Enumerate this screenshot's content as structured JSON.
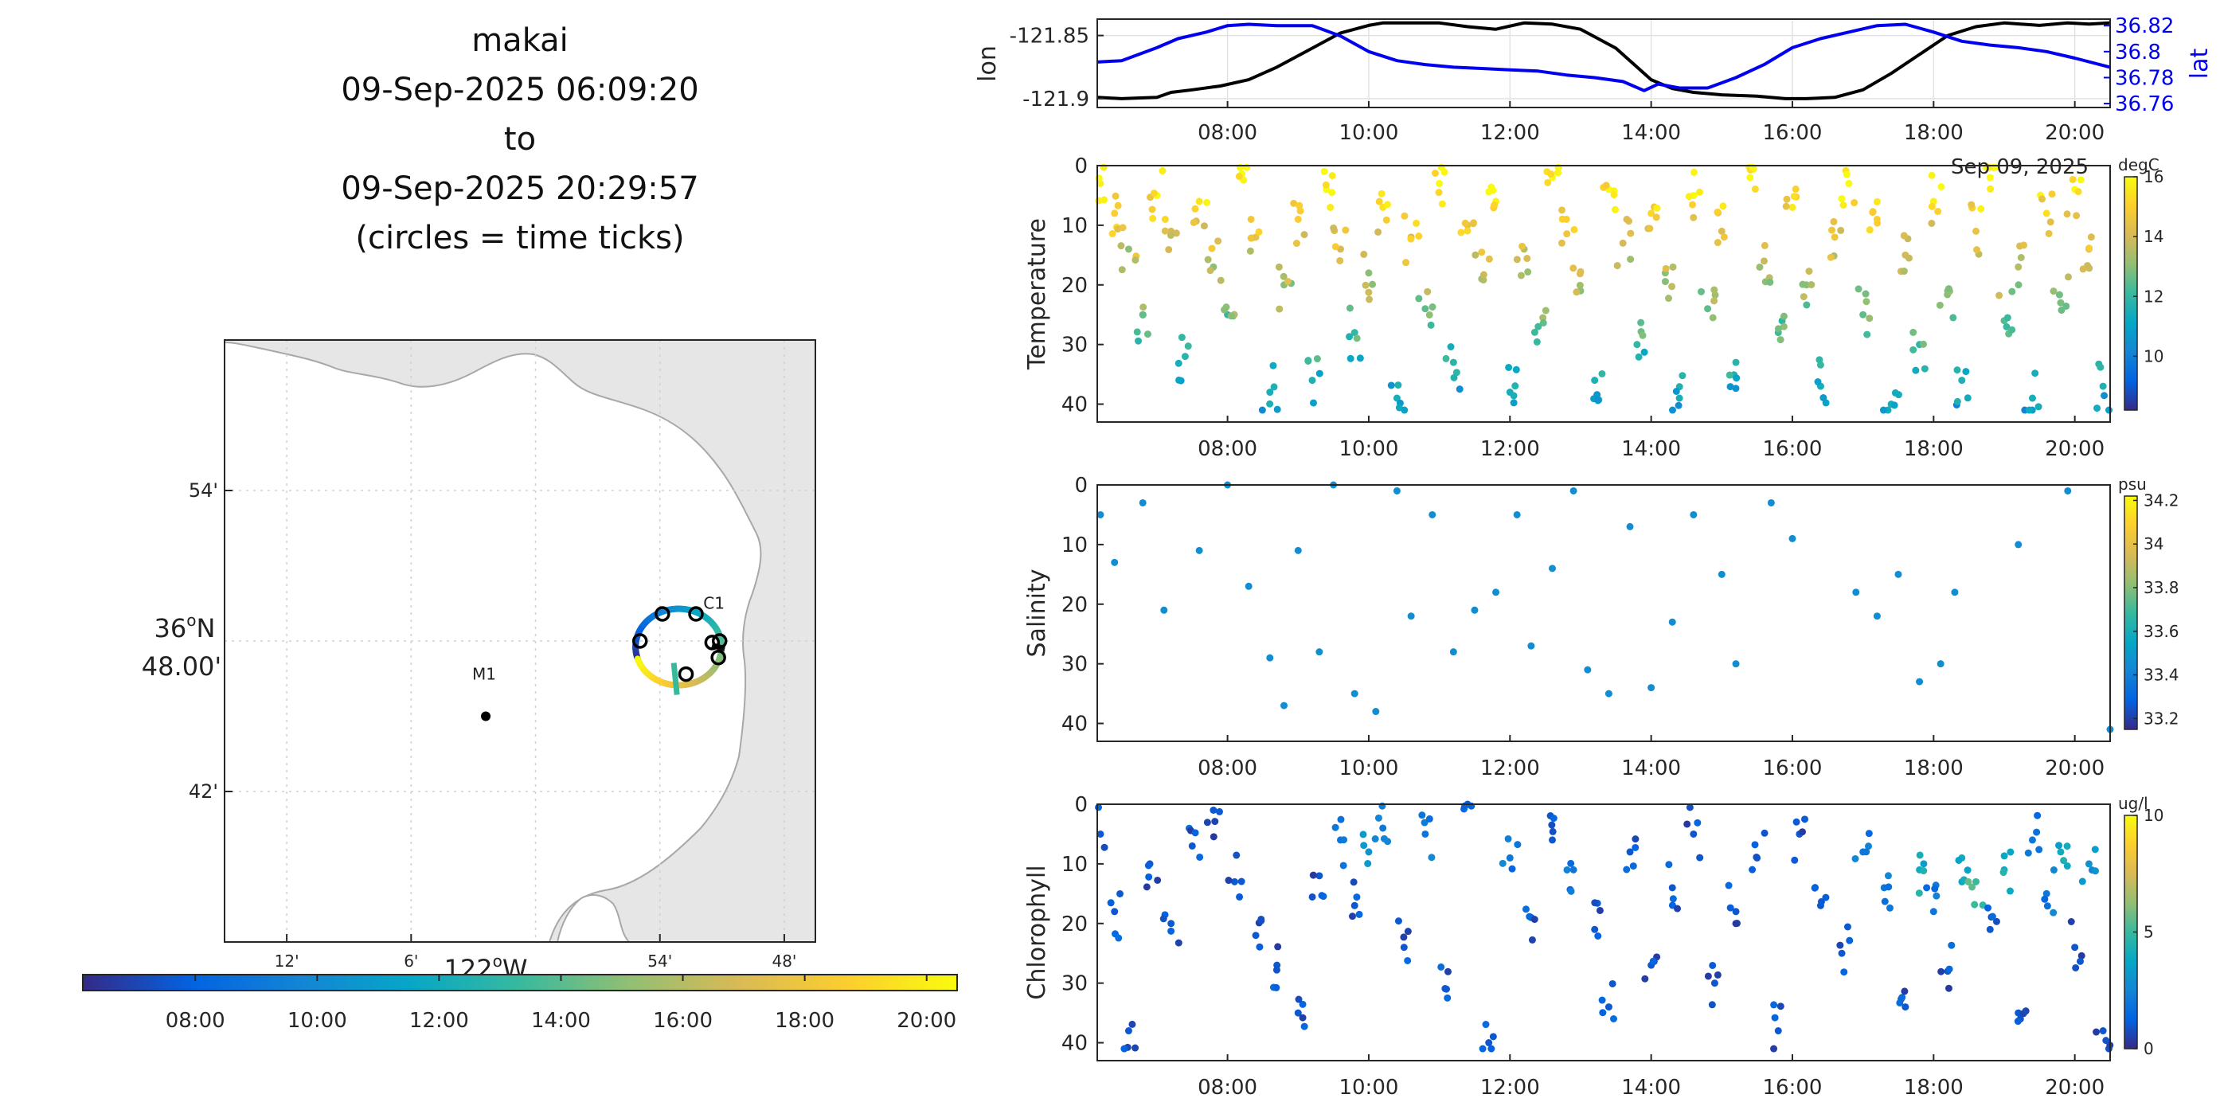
{
  "title_block": {
    "line1": "makai",
    "line2": "09-Sep-2025 06:09:20",
    "line3": "to",
    "line4": "09-Sep-2025 20:29:57",
    "line5": "(circles = time ticks)"
  },
  "colors": {
    "lon_line": "#000000",
    "lat_line": "#0000ee",
    "land": "#e6e6e6",
    "coast": "#a8a8a8",
    "parula_stops": [
      "#352a87",
      "#0363e1",
      "#1485d4",
      "#06a7c6",
      "#38b99e",
      "#92bf73",
      "#d9ba56",
      "#fcce2e",
      "#f9fb0e"
    ]
  },
  "map": {
    "type": "map",
    "lon_ticks": [
      "12'",
      "6'",
      "54'",
      "48'"
    ],
    "lon_tick_values": [
      -122.2,
      -122.1,
      -121.9,
      -121.8
    ],
    "lon_label": "122°W",
    "lon_label_base": "122",
    "lon_label_sup": "o",
    "lon_label_suffix": "W",
    "lat_ticks": [
      "54'",
      "42'"
    ],
    "lat_tick_values": [
      36.9,
      36.7
    ],
    "lat_label_line1": "36°N",
    "lat_label_base": "36",
    "lat_label_sup": "o",
    "lat_label_suffix": "N",
    "lat_label_line2": "48.00'",
    "xlim": [
      -122.25,
      -121.775
    ],
    "ylim": [
      36.6,
      37.0
    ],
    "stations": [
      {
        "name": "M1",
        "lon": -122.04,
        "lat": 36.75
      },
      {
        "name": "C1",
        "lon": -121.883,
        "lat": 36.823
      }
    ],
    "track_center": {
      "lon": -121.885,
      "lat": 36.796
    },
    "time_tick_circles": [
      {
        "lon": -121.898,
        "lat": 36.818
      },
      {
        "lon": -121.871,
        "lat": 36.818
      },
      {
        "lon": -121.916,
        "lat": 36.8
      },
      {
        "lon": -121.852,
        "lat": 36.8
      },
      {
        "lon": -121.858,
        "lat": 36.799
      },
      {
        "lon": -121.853,
        "lat": 36.789
      },
      {
        "lon": -121.879,
        "lat": 36.778
      }
    ]
  },
  "colorbar_time": {
    "ticks": [
      "08:00",
      "10:00",
      "12:00",
      "14:00",
      "16:00",
      "18:00",
      "20:00"
    ]
  },
  "chart_data": [
    {
      "type": "line",
      "panel": "lon-lat",
      "x_label": "time",
      "x_ticks": [
        "08:00",
        "10:00",
        "12:00",
        "14:00",
        "16:00",
        "18:00",
        "20:00"
      ],
      "x_range_hours": [
        6.155,
        20.5
      ],
      "date_label": "Sep 09, 2025",
      "left_ylabel": "lon",
      "left_ticks": [
        "-121.85",
        "-121.9"
      ],
      "left_tick_values": [
        -121.85,
        -121.9
      ],
      "left_ylim": [
        -121.907,
        -121.837
      ],
      "right_ylabel": "lat",
      "right_ticks": [
        "36.82",
        "36.8",
        "36.78",
        "36.76"
      ],
      "right_tick_values": [
        36.82,
        36.8,
        36.78,
        36.76
      ],
      "right_ylim": [
        36.757,
        36.825
      ],
      "series": [
        {
          "name": "lon",
          "axis": "left",
          "color": "#000000",
          "x": [
            6.16,
            6.5,
            7.0,
            7.2,
            7.5,
            7.9,
            8.3,
            8.7,
            9.2,
            9.6,
            10.0,
            10.2,
            10.6,
            11.0,
            11.4,
            11.8,
            12.2,
            12.6,
            13.0,
            13.5,
            13.8,
            14.0,
            14.3,
            14.6,
            15.0,
            15.5,
            15.9,
            16.2,
            16.6,
            17.0,
            17.4,
            17.8,
            18.2,
            18.6,
            19.0,
            19.5,
            19.9,
            20.2,
            20.5
          ],
          "y": [
            -121.899,
            -121.9,
            -121.899,
            -121.895,
            -121.893,
            -121.89,
            -121.885,
            -121.875,
            -121.86,
            -121.848,
            -121.842,
            -121.84,
            -121.84,
            -121.84,
            -121.843,
            -121.845,
            -121.84,
            -121.841,
            -121.845,
            -121.86,
            -121.875,
            -121.885,
            -121.892,
            -121.895,
            -121.897,
            -121.898,
            -121.9,
            -121.9,
            -121.899,
            -121.893,
            -121.88,
            -121.865,
            -121.85,
            -121.843,
            -121.84,
            -121.842,
            -121.84,
            -121.841,
            -121.84
          ]
        },
        {
          "name": "lat",
          "axis": "right",
          "color": "#0000ee",
          "x": [
            6.16,
            6.5,
            7.0,
            7.3,
            7.7,
            8.0,
            8.3,
            8.7,
            9.2,
            9.6,
            10.0,
            10.4,
            10.8,
            11.2,
            11.6,
            12.0,
            12.4,
            12.8,
            13.2,
            13.6,
            13.9,
            14.1,
            14.4,
            14.8,
            15.2,
            15.6,
            16.0,
            16.4,
            16.8,
            17.2,
            17.6,
            18.0,
            18.4,
            18.8,
            19.2,
            19.6,
            20.0,
            20.5
          ],
          "y": [
            36.792,
            36.793,
            36.803,
            36.81,
            36.815,
            36.82,
            36.821,
            36.82,
            36.82,
            36.812,
            36.8,
            36.793,
            36.79,
            36.788,
            36.787,
            36.786,
            36.785,
            36.782,
            36.78,
            36.777,
            36.77,
            36.775,
            36.772,
            36.772,
            36.78,
            36.79,
            36.803,
            36.81,
            36.815,
            36.82,
            36.821,
            36.815,
            36.808,
            36.805,
            36.803,
            36.8,
            36.795,
            36.788
          ]
        }
      ]
    },
    {
      "type": "scatter",
      "panel": "Temperature",
      "ylabel": "Temperature",
      "x_ticks": [
        "08:00",
        "10:00",
        "12:00",
        "14:00",
        "16:00",
        "18:00",
        "20:00"
      ],
      "y_ticks": [
        "0",
        "10",
        "20",
        "30",
        "40"
      ],
      "ylim": [
        43,
        0
      ],
      "colorbar_label": "degC",
      "colorbar_ticks": [
        "16",
        "14",
        "12",
        "10"
      ],
      "colorbar_tick_values": [
        16,
        14,
        12,
        10
      ],
      "clim": [
        8.2,
        16
      ],
      "sample_points": [
        [
          6.2,
          3,
          15.8
        ],
        [
          6.4,
          8,
          15
        ],
        [
          6.6,
          14,
          13
        ],
        [
          6.8,
          25,
          12
        ],
        [
          7.0,
          5,
          16
        ],
        [
          7.2,
          11,
          14
        ],
        [
          7.4,
          32,
          11.8
        ],
        [
          7.6,
          6,
          15.5
        ],
        [
          7.8,
          17,
          13
        ],
        [
          8.0,
          25,
          12
        ],
        [
          8.2,
          2,
          16
        ],
        [
          8.4,
          12,
          14.5
        ],
        [
          8.6,
          38,
          11.5
        ],
        [
          8.8,
          20,
          13
        ],
        [
          9.0,
          9,
          15
        ],
        [
          9.2,
          36,
          11.6
        ],
        [
          9.4,
          4,
          16
        ],
        [
          9.6,
          14,
          14
        ],
        [
          9.8,
          28,
          12
        ],
        [
          10.0,
          18,
          13
        ],
        [
          10.2,
          7,
          15.5
        ],
        [
          10.4,
          39,
          11.5
        ],
        [
          10.6,
          12,
          14
        ],
        [
          10.8,
          24,
          12.5
        ],
        [
          11.0,
          3,
          16
        ],
        [
          11.2,
          33,
          11.8
        ],
        [
          11.4,
          10,
          14.5
        ],
        [
          11.6,
          19,
          13.2
        ],
        [
          11.8,
          6,
          15.8
        ],
        [
          12.0,
          38,
          11.5
        ],
        [
          12.2,
          14,
          13.5
        ],
        [
          12.4,
          27,
          12.2
        ],
        [
          12.6,
          2,
          16
        ],
        [
          12.8,
          9,
          15
        ],
        [
          13.0,
          21,
          13
        ],
        [
          13.2,
          36,
          11.6
        ],
        [
          13.4,
          4,
          16
        ],
        [
          13.6,
          13,
          14
        ],
        [
          13.8,
          30,
          12
        ],
        [
          14.0,
          8,
          15.2
        ],
        [
          14.2,
          18,
          13
        ],
        [
          14.4,
          39,
          11.5
        ],
        [
          14.6,
          5,
          16
        ],
        [
          14.8,
          24,
          12.5
        ],
        [
          15.0,
          11,
          14.2
        ],
        [
          15.2,
          33,
          11.8
        ],
        [
          15.4,
          2,
          16
        ],
        [
          15.6,
          16,
          13.8
        ],
        [
          15.8,
          28,
          12.2
        ],
        [
          16.0,
          7,
          15.6
        ],
        [
          16.2,
          20,
          13
        ],
        [
          16.4,
          37,
          11.5
        ],
        [
          16.6,
          12,
          14.6
        ],
        [
          16.8,
          3,
          16
        ],
        [
          17.0,
          25,
          12.5
        ],
        [
          17.2,
          9,
          15
        ],
        [
          17.4,
          40,
          11.5
        ],
        [
          17.6,
          15,
          14
        ],
        [
          17.8,
          30,
          12
        ],
        [
          18.0,
          6,
          15.8
        ],
        [
          18.2,
          21,
          13
        ],
        [
          18.4,
          36,
          11.6
        ],
        [
          18.6,
          11,
          14.5
        ],
        [
          18.8,
          2,
          16
        ],
        [
          19.0,
          26,
          12.4
        ],
        [
          19.2,
          17,
          13.6
        ],
        [
          19.4,
          39,
          11.5
        ],
        [
          19.6,
          8,
          15.4
        ],
        [
          19.8,
          23,
          12.8
        ],
        [
          20.0,
          4,
          16
        ],
        [
          20.2,
          14,
          14.3
        ],
        [
          20.4,
          37,
          11.6
        ]
      ]
    },
    {
      "type": "scatter",
      "panel": "Salinity",
      "ylabel": "Salinity",
      "x_ticks": [
        "08:00",
        "10:00",
        "12:00",
        "14:00",
        "16:00",
        "18:00",
        "20:00"
      ],
      "y_ticks": [
        "0",
        "10",
        "20",
        "30",
        "40"
      ],
      "ylim": [
        43,
        0
      ],
      "colorbar_label": "psu",
      "colorbar_ticks": [
        "34.2",
        "34",
        "33.8",
        "33.6",
        "33.4",
        "33.2"
      ],
      "colorbar_tick_values": [
        34.2,
        34.0,
        33.8,
        33.6,
        33.4,
        33.2
      ],
      "clim": [
        33.15,
        34.22
      ],
      "sample_points": [
        [
          6.2,
          5,
          33.45
        ],
        [
          6.4,
          13,
          33.45
        ],
        [
          6.8,
          3,
          33.45
        ],
        [
          7.1,
          21,
          33.45
        ],
        [
          7.6,
          11,
          33.45
        ],
        [
          8.0,
          0,
          33.45
        ],
        [
          8.3,
          17,
          33.45
        ],
        [
          8.6,
          29,
          33.45
        ],
        [
          8.8,
          37,
          33.45
        ],
        [
          9.0,
          11,
          33.45
        ],
        [
          9.3,
          28,
          33.45
        ],
        [
          9.5,
          0,
          33.45
        ],
        [
          9.8,
          35,
          33.45
        ],
        [
          10.1,
          38,
          33.45
        ],
        [
          10.4,
          1,
          33.45
        ],
        [
          10.6,
          22,
          33.45
        ],
        [
          10.9,
          5,
          33.45
        ],
        [
          11.2,
          28,
          33.45
        ],
        [
          11.5,
          21,
          33.45
        ],
        [
          11.8,
          18,
          33.45
        ],
        [
          12.1,
          5,
          33.45
        ],
        [
          12.3,
          27,
          33.45
        ],
        [
          12.6,
          14,
          33.45
        ],
        [
          12.9,
          1,
          33.45
        ],
        [
          13.1,
          31,
          33.45
        ],
        [
          13.4,
          35,
          33.45
        ],
        [
          13.7,
          7,
          33.45
        ],
        [
          14.0,
          34,
          33.45
        ],
        [
          14.3,
          23,
          33.45
        ],
        [
          14.6,
          5,
          33.45
        ],
        [
          15.0,
          15,
          33.45
        ],
        [
          15.2,
          30,
          33.45
        ],
        [
          15.7,
          3,
          33.45
        ],
        [
          16.0,
          9,
          33.45
        ],
        [
          16.9,
          18,
          33.45
        ],
        [
          17.2,
          22,
          33.45
        ],
        [
          17.5,
          15,
          33.45
        ],
        [
          17.8,
          33,
          33.45
        ],
        [
          18.1,
          30,
          33.45
        ],
        [
          18.3,
          18,
          33.45
        ],
        [
          19.2,
          10,
          33.45
        ],
        [
          19.9,
          1,
          33.45
        ],
        [
          20.5,
          41,
          33.45
        ]
      ]
    },
    {
      "type": "scatter",
      "panel": "Chlorophyll",
      "ylabel": "Chlorophyll",
      "x_ticks": [
        "08:00",
        "10:00",
        "12:00",
        "14:00",
        "16:00",
        "18:00",
        "20:00"
      ],
      "y_ticks": [
        "0",
        "10",
        "20",
        "30",
        "40"
      ],
      "ylim": [
        43,
        0
      ],
      "colorbar_label": "ug/l",
      "colorbar_ticks": [
        "10",
        "5",
        "0"
      ],
      "colorbar_tick_values": [
        10,
        5,
        0
      ],
      "clim": [
        0,
        10
      ],
      "sample_points": [
        [
          6.2,
          5,
          1
        ],
        [
          6.4,
          18,
          1
        ],
        [
          6.6,
          38,
          1
        ],
        [
          6.9,
          10,
          1
        ],
        [
          7.2,
          20,
          1
        ],
        [
          7.5,
          7,
          1
        ],
        [
          7.8,
          1,
          1
        ],
        [
          8.1,
          13,
          1
        ],
        [
          8.4,
          22,
          1
        ],
        [
          8.7,
          27,
          1
        ],
        [
          9.0,
          35,
          1
        ],
        [
          9.3,
          12,
          1
        ],
        [
          9.6,
          6,
          2
        ],
        [
          9.8,
          17,
          1
        ],
        [
          10.0,
          8,
          3
        ],
        [
          10.2,
          4,
          2
        ],
        [
          10.5,
          24,
          1
        ],
        [
          10.8,
          5,
          2
        ],
        [
          11.1,
          31,
          1
        ],
        [
          11.4,
          0,
          1
        ],
        [
          11.7,
          40,
          1
        ],
        [
          12.0,
          9,
          2
        ],
        [
          12.3,
          19,
          1
        ],
        [
          12.6,
          6,
          1
        ],
        [
          12.9,
          11,
          2
        ],
        [
          13.2,
          21,
          1
        ],
        [
          13.4,
          34,
          1
        ],
        [
          13.7,
          8,
          1
        ],
        [
          14.0,
          27,
          1
        ],
        [
          14.3,
          14,
          1
        ],
        [
          14.6,
          5,
          1
        ],
        [
          14.9,
          30,
          1
        ],
        [
          15.2,
          18,
          1
        ],
        [
          15.5,
          9,
          1
        ],
        [
          15.8,
          38,
          1
        ],
        [
          16.1,
          5,
          1
        ],
        [
          16.4,
          17,
          1
        ],
        [
          16.7,
          25,
          1
        ],
        [
          17.0,
          8,
          2
        ],
        [
          17.3,
          14,
          2
        ],
        [
          17.6,
          34,
          1
        ],
        [
          17.8,
          11,
          4
        ],
        [
          18.0,
          18,
          2
        ],
        [
          18.2,
          28,
          1
        ],
        [
          18.4,
          9,
          4
        ],
        [
          18.6,
          13,
          5
        ],
        [
          18.8,
          21,
          1
        ],
        [
          19.0,
          11,
          4
        ],
        [
          19.2,
          35,
          1
        ],
        [
          19.4,
          6,
          2
        ],
        [
          19.6,
          15,
          2
        ],
        [
          19.8,
          8,
          4
        ],
        [
          20.0,
          24,
          1
        ],
        [
          20.2,
          10,
          3
        ],
        [
          20.4,
          38,
          1
        ]
      ]
    }
  ]
}
